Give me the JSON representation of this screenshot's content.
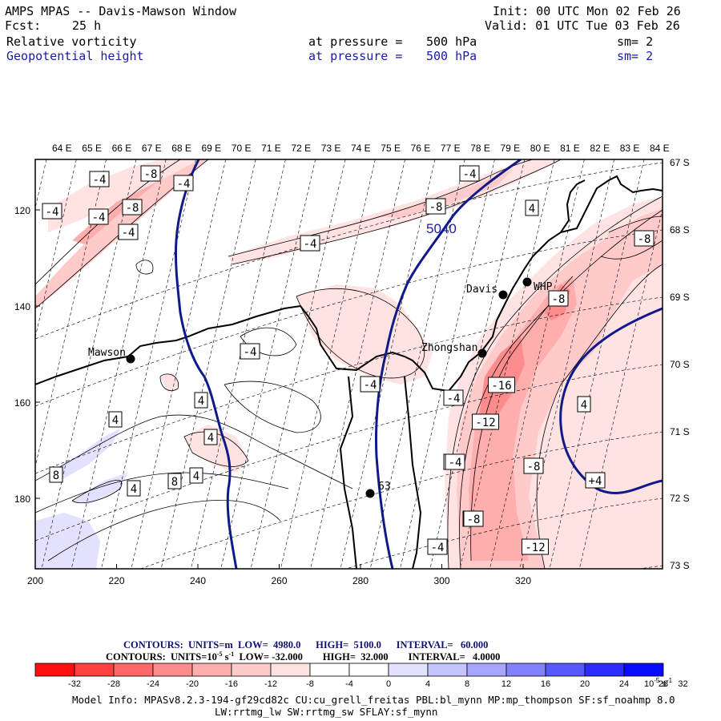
{
  "header": {
    "title": "AMPS MPAS -- Davis-Mawson Window",
    "init": "Init: 00 UTC Mon 02 Feb 26",
    "fcst_label": "Fcst:",
    "fcst_value": "25 h",
    "valid": "Valid: 01 UTC Tue 03 Feb 26",
    "fields": [
      {
        "name": "Relative vorticity",
        "level_label": "at pressure =",
        "level": "500 hPa",
        "smoothing": "sm= 2"
      },
      {
        "name": "Geopotential height",
        "level_label": "at pressure =",
        "level": "500 hPa",
        "smoothing": "sm= 2"
      }
    ]
  },
  "map": {
    "lon_labels": [
      "64 E",
      "65 E",
      "66 E",
      "67 E",
      "68 E",
      "69 E",
      "70 E",
      "71 E",
      "72 E",
      "73 E",
      "74 E",
      "75 E",
      "76 E",
      "77 E",
      "78 E",
      "79 E",
      "80 E",
      "81 E",
      "82 E",
      "83 E",
      "84 E"
    ],
    "lat_labels": [
      "67 S",
      "68 S",
      "69 S",
      "70 S",
      "71 S",
      "72 S",
      "73 S"
    ],
    "x_ticks": [
      "200",
      "220",
      "240",
      "260",
      "280",
      "300",
      "320"
    ],
    "y_ticks": [
      "120",
      "140",
      "160",
      "180"
    ],
    "stations": [
      {
        "name": "Mawson"
      },
      {
        "name": "Davis"
      },
      {
        "name": "WHP"
      },
      {
        "name": "Zhongshan"
      },
      {
        "name": "63"
      }
    ],
    "height_contour_label": "5040",
    "vorticity_labels": [
      "-4",
      "-8",
      "-4",
      "-4",
      "-8",
      "-4",
      "-4",
      "-4",
      "-8",
      "-4",
      "4",
      "-8",
      "-8",
      "-4",
      "4",
      "4",
      "-16",
      "-12",
      "-8",
      "-4",
      "4",
      "-4",
      "-8",
      "-8",
      "4",
      "8",
      "8",
      "4",
      "4",
      "-4",
      "-12",
      "-8",
      "+4",
      "-4"
    ]
  },
  "legend": {
    "line1": {
      "label": "CONTOURS:",
      "units": "UNITS=m",
      "low": "LOW=  4980.0",
      "high": "HIGH=  5100.0",
      "interval": "INTERVAL=   60.000"
    },
    "line2": {
      "label": "CONTOURS:",
      "units": "UNITS=10",
      "units_exp": "-5",
      "units_tail": " s",
      "units_tail_exp": "-1",
      "low": "LOW= -32.000",
      "high": "HIGH=  32.000",
      "interval": "INTERVAL=   4.0000"
    },
    "colorbar_colors": [
      "#ff1010",
      "#ff4040",
      "#ff6868",
      "#ff8c8c",
      "#ffaeae",
      "#ffcaca",
      "#ffe2e2",
      "#ffffff",
      "#ffffff",
      "#e2e2ff",
      "#c4c4ff",
      "#a6a6ff",
      "#8282ff",
      "#5858ff",
      "#2c2cff",
      "#0a0aff"
    ],
    "colorbar_ticks": [
      "-32",
      "-28",
      "-24",
      "-20",
      "-16",
      "-12",
      "-8",
      "-4",
      "0",
      "4",
      "8",
      "12",
      "16",
      "20",
      "24",
      "28",
      "32"
    ],
    "colorbar_unit": "10",
    "colorbar_unit_exp": "-5",
    "colorbar_unit_tail": " s",
    "colorbar_unit_tail_exp": "-1"
  },
  "footer": {
    "line1": "Model Info: MPASv8.2.3-194-gf29cd82c CU:cu_grell_freitas PBL:bl_mynn MP:mp_thompson SF:sf_noahmp 8.0",
    "line2": "LW:rrtmg_lw SW:rrtmg_sw SFLAY:sf_mynn"
  },
  "colors": {
    "height_contour": "#0f1a8a",
    "label_blue": "#1a1aa8",
    "coast": "#000000"
  }
}
